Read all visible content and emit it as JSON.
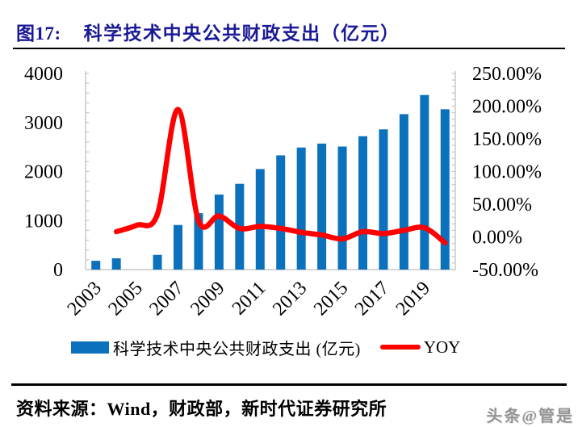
{
  "header": {
    "figure_label": "图17:",
    "title": "科学技术中央公共财政支出（亿元）"
  },
  "legend": {
    "bar_label": "科学技术中央公共财政支出 (亿元)",
    "line_label": "YOY"
  },
  "footer": {
    "source": "资料来源：Wind，财政部，新时代证券研究所",
    "watermark": "头条@管是"
  },
  "colors": {
    "title_navy": "#1A1A96",
    "bar_blue": "#0C71BC",
    "line_red": "#FF0000",
    "axis_gray": "#C9C9C9",
    "text_black": "#000000",
    "watermark_gray": "#959595"
  },
  "chart_data": {
    "type": "bar",
    "subtype": "combo-bar-line-dual-axis",
    "title": "科学技术中央公共财政支出（亿元）",
    "categories": [
      "2003",
      "2004",
      "2005",
      "2006",
      "2007",
      "2008",
      "2009",
      "2010",
      "2011",
      "2012",
      "2013",
      "2014",
      "2015",
      "2016",
      "2017",
      "2018",
      "2019",
      "2020"
    ],
    "x_axis_tick_labels": [
      "2003",
      "2005",
      "2007",
      "2009",
      "2011",
      "2013",
      "2015",
      "2017",
      "2019"
    ],
    "series": [
      {
        "name": "科学技术中央公共财政支出 (亿元)",
        "type": "bar",
        "y_axis": "left",
        "color": "#0C71BC",
        "values": [
          180,
          230,
          null,
          300,
          910,
          1150,
          1530,
          1750,
          2050,
          2330,
          2490,
          2570,
          2510,
          2720,
          2860,
          3170,
          3560,
          3270
        ]
      },
      {
        "name": "YOY",
        "type": "line",
        "y_axis": "right",
        "unit": "%",
        "color": "#FF0000",
        "values": [
          null,
          8,
          18,
          35,
          195,
          25,
          32,
          13,
          16,
          13,
          7,
          3,
          -3,
          8,
          5,
          10,
          14,
          -9
        ]
      }
    ],
    "left_axis": {
      "min": 0,
      "max": 4000,
      "minor_tick_step": 200,
      "major_ticks": [
        {
          "value": 0,
          "label": "0"
        },
        {
          "value": 1000,
          "label": "1000"
        },
        {
          "value": 2000,
          "label": "2000"
        },
        {
          "value": 3000,
          "label": "3000"
        },
        {
          "value": 4000,
          "label": "4000"
        }
      ]
    },
    "right_axis": {
      "min": -50,
      "max": 250,
      "minor_tick_step": 10,
      "major_ticks": [
        {
          "value": -50,
          "label": "-50.00%"
        },
        {
          "value": 0,
          "label": "0.00%"
        },
        {
          "value": 50,
          "label": "50.00%"
        },
        {
          "value": 100,
          "label": "100.00%"
        },
        {
          "value": 150,
          "label": "150.00%"
        },
        {
          "value": 200,
          "label": "200.00%"
        },
        {
          "value": 250,
          "label": "250.00%"
        }
      ]
    },
    "gridlines": false,
    "legend_position": "bottom"
  }
}
